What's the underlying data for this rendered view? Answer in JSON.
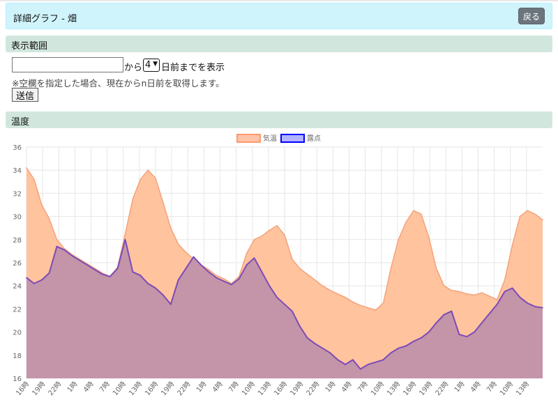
{
  "header": {
    "title": "詳細グラフ - 畑",
    "back_label": "戻る"
  },
  "range_section": {
    "title": "表示範囲",
    "date_value": "",
    "from_label": "から",
    "days_value": "4",
    "show_label": "日前までを表示",
    "note": "※空欄を指定した場合、現在からn日前を取得します。",
    "submit_label": "送信"
  },
  "temp_section": {
    "title": "温度"
  },
  "colors": {
    "temp_fill": "#ffc39e",
    "temp_line": "#f4a37a",
    "dew_fill": "#c494a8",
    "dew_line": "#7b4bb8",
    "legend_temp_fill": "#ffc3a8",
    "legend_temp_border": "#ff9a6e",
    "legend_dew_fill": "#b3b3ff",
    "legend_dew_border": "#0000ff"
  },
  "chart_data": {
    "type": "area",
    "legend_position": "top",
    "grid": true,
    "ylim": [
      16,
      36
    ],
    "y_ticks": [
      "16",
      "18",
      "20",
      "22",
      "24",
      "26",
      "28",
      "30",
      "32",
      "34",
      "36"
    ],
    "x_ticks": [
      "16時",
      "19時",
      "22時",
      "1時",
      "4時",
      "7時",
      "10時",
      "13時",
      "16時",
      "19時",
      "22時",
      "1時",
      "4時",
      "7時",
      "10時",
      "13時",
      "16時",
      "19時",
      "22時",
      "1時",
      "4時",
      "7時",
      "10時",
      "13時",
      "16時",
      "19時",
      "22時",
      "1時",
      "4時",
      "7時",
      "10時",
      "13時"
    ],
    "series": [
      {
        "name": "気温",
        "values": [
          34.2,
          33.2,
          31,
          29.8,
          28,
          27.2,
          26.7,
          26.3,
          25.9,
          25.5,
          25.1,
          24.8,
          25.6,
          28.5,
          31.5,
          33.2,
          34,
          33.3,
          31.2,
          29,
          27.6,
          26.9,
          26.3,
          25.8,
          25.4,
          24.9,
          24.6,
          24.2,
          24.8,
          26.8,
          28,
          28.3,
          28.8,
          29.2,
          28.4,
          26.3,
          25.5,
          25,
          24.5,
          24,
          23.6,
          23.3,
          23,
          22.6,
          22.3,
          22.1,
          21.9,
          22.5,
          25.5,
          28,
          29.5,
          30.5,
          30.2,
          28.2,
          25.5,
          24,
          23.6,
          23.5,
          23.3,
          23.2,
          23.4,
          23.1,
          22.8,
          24.5,
          27.5,
          30,
          30.5,
          30.2,
          29.7
        ]
      },
      {
        "name": "露点",
        "values": [
          24.7,
          24.2,
          24.5,
          25.1,
          27.4,
          27.1,
          26.6,
          26.2,
          25.8,
          25.4,
          25,
          24.8,
          25.5,
          28,
          25.2,
          24.9,
          24.2,
          23.8,
          23.2,
          22.4,
          24.5,
          25.5,
          26.5,
          25.8,
          25.2,
          24.7,
          24.4,
          24.1,
          24.6,
          25.8,
          26.4,
          25.2,
          24,
          23,
          22.4,
          21.8,
          20.5,
          19.5,
          19,
          18.6,
          18.2,
          17.6,
          17.2,
          17.6,
          16.8,
          17.2,
          17.4,
          17.6,
          18.2,
          18.6,
          18.8,
          19.2,
          19.5,
          20,
          20.8,
          21.5,
          21.8,
          19.8,
          19.6,
          20,
          20.8,
          21.6,
          22.4,
          23.5,
          23.8,
          23,
          22.5,
          22.2,
          22.1
        ]
      }
    ]
  }
}
